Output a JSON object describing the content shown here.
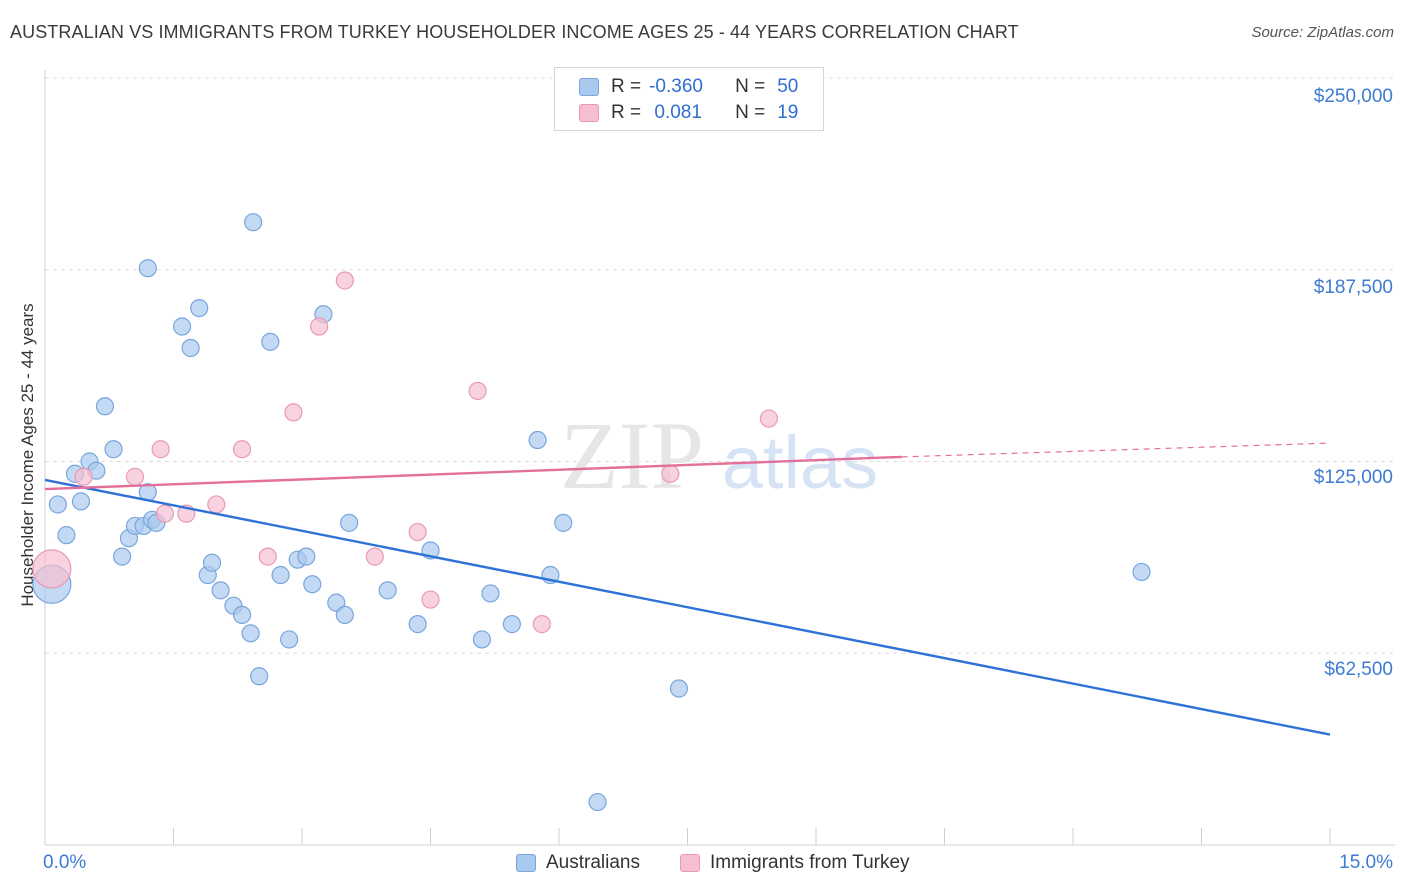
{
  "title": "AUSTRALIAN VS IMMIGRANTS FROM TURKEY HOUSEHOLDER INCOME AGES 25 - 44 YEARS CORRELATION CHART",
  "source": "Source: ZipAtlas.com",
  "watermark": {
    "zip": "ZIP",
    "atlas": "atlas"
  },
  "legend": {
    "rows": [
      {
        "r_label": "R =",
        "r_value": "-0.360",
        "n_label": "N =",
        "n_value": "50"
      },
      {
        "r_label": "R =",
        "r_value": " 0.081",
        "n_label": "N =",
        "n_value": "19"
      }
    ]
  },
  "bottom_legend": [
    "Australians",
    "Immigrants from Turkey"
  ],
  "colors": {
    "blue_fill": "#aac9ef",
    "blue_stroke": "#7aa6dc",
    "blue_line": "#2f72d6",
    "pink_fill": "#f6bfd1",
    "pink_stroke": "#e89ab4",
    "pink_line": "#e3709a",
    "axis_text": "#3d7bd1",
    "grid": "#dddddd"
  },
  "chart_data": {
    "type": "scatter",
    "title": "AUSTRALIAN VS IMMIGRANTS FROM TURKEY HOUSEHOLDER INCOME AGES 25 - 44 YEARS CORRELATION CHART",
    "xlabel": "",
    "ylabel": "Householder Income Ages 25 - 44 years",
    "xlim": [
      0,
      15
    ],
    "ylim": [
      0,
      250000
    ],
    "x_tick_labels": [
      "0.0%",
      "15.0%"
    ],
    "y_ticks": [
      62500,
      125000,
      187500,
      250000
    ],
    "y_tick_labels": [
      "$62,500",
      "$125,000",
      "$187,500",
      "$250,000"
    ],
    "grid": true,
    "legend_position": "top-center",
    "series": [
      {
        "name": "Australians",
        "points": [
          [
            0.08,
            85000
          ],
          [
            0.15,
            111000
          ],
          [
            0.25,
            101000
          ],
          [
            0.35,
            121000
          ],
          [
            0.42,
            112000
          ],
          [
            0.52,
            125000
          ],
          [
            0.6,
            122000
          ],
          [
            0.7,
            143000
          ],
          [
            0.8,
            129000
          ],
          [
            0.9,
            94000
          ],
          [
            0.98,
            100000
          ],
          [
            1.05,
            104000
          ],
          [
            1.15,
            104000
          ],
          [
            1.2,
            115000
          ],
          [
            1.25,
            106000
          ],
          [
            1.3,
            105000
          ],
          [
            1.2,
            188000
          ],
          [
            1.6,
            169000
          ],
          [
            1.8,
            175000
          ],
          [
            1.7,
            162000
          ],
          [
            1.9,
            88000
          ],
          [
            1.95,
            92000
          ],
          [
            2.05,
            83000
          ],
          [
            2.2,
            78000
          ],
          [
            2.3,
            75000
          ],
          [
            2.4,
            69000
          ],
          [
            2.5,
            55000
          ],
          [
            2.43,
            203000
          ],
          [
            2.63,
            164000
          ],
          [
            2.75,
            88000
          ],
          [
            2.85,
            67000
          ],
          [
            2.95,
            93000
          ],
          [
            3.05,
            94000
          ],
          [
            3.12,
            85000
          ],
          [
            3.25,
            173000
          ],
          [
            3.4,
            79000
          ],
          [
            3.5,
            75000
          ],
          [
            3.55,
            105000
          ],
          [
            4.0,
            83000
          ],
          [
            4.35,
            72000
          ],
          [
            4.5,
            96000
          ],
          [
            5.1,
            67000
          ],
          [
            5.2,
            82000
          ],
          [
            5.45,
            72000
          ],
          [
            5.75,
            132000
          ],
          [
            5.9,
            88000
          ],
          [
            6.05,
            105000
          ],
          [
            6.45,
            14000
          ],
          [
            7.4,
            51000
          ],
          [
            12.8,
            89000
          ]
        ]
      },
      {
        "name": "Immigrants from Turkey",
        "points": [
          [
            0.08,
            90000
          ],
          [
            0.45,
            120000
          ],
          [
            1.05,
            120000
          ],
          [
            1.35,
            129000
          ],
          [
            1.4,
            108000
          ],
          [
            1.65,
            108000
          ],
          [
            2.0,
            111000
          ],
          [
            2.3,
            129000
          ],
          [
            2.6,
            94000
          ],
          [
            2.9,
            141000
          ],
          [
            3.2,
            169000
          ],
          [
            3.5,
            184000
          ],
          [
            3.85,
            94000
          ],
          [
            4.35,
            102000
          ],
          [
            4.5,
            80000
          ],
          [
            5.05,
            148000
          ],
          [
            5.8,
            72000
          ],
          [
            7.3,
            121000
          ],
          [
            8.45,
            139000
          ]
        ]
      }
    ],
    "trend_lines": [
      {
        "series": "Australians",
        "x": [
          0,
          15
        ],
        "y": [
          119000,
          36000
        ],
        "style": "solid"
      },
      {
        "series": "Immigrants from Turkey",
        "x": [
          0,
          10
        ],
        "y": [
          116000,
          126500
        ],
        "style": "solid"
      },
      {
        "series": "Immigrants from Turkey",
        "x": [
          10,
          15
        ],
        "y": [
          126500,
          131000
        ],
        "style": "dashed"
      }
    ]
  }
}
